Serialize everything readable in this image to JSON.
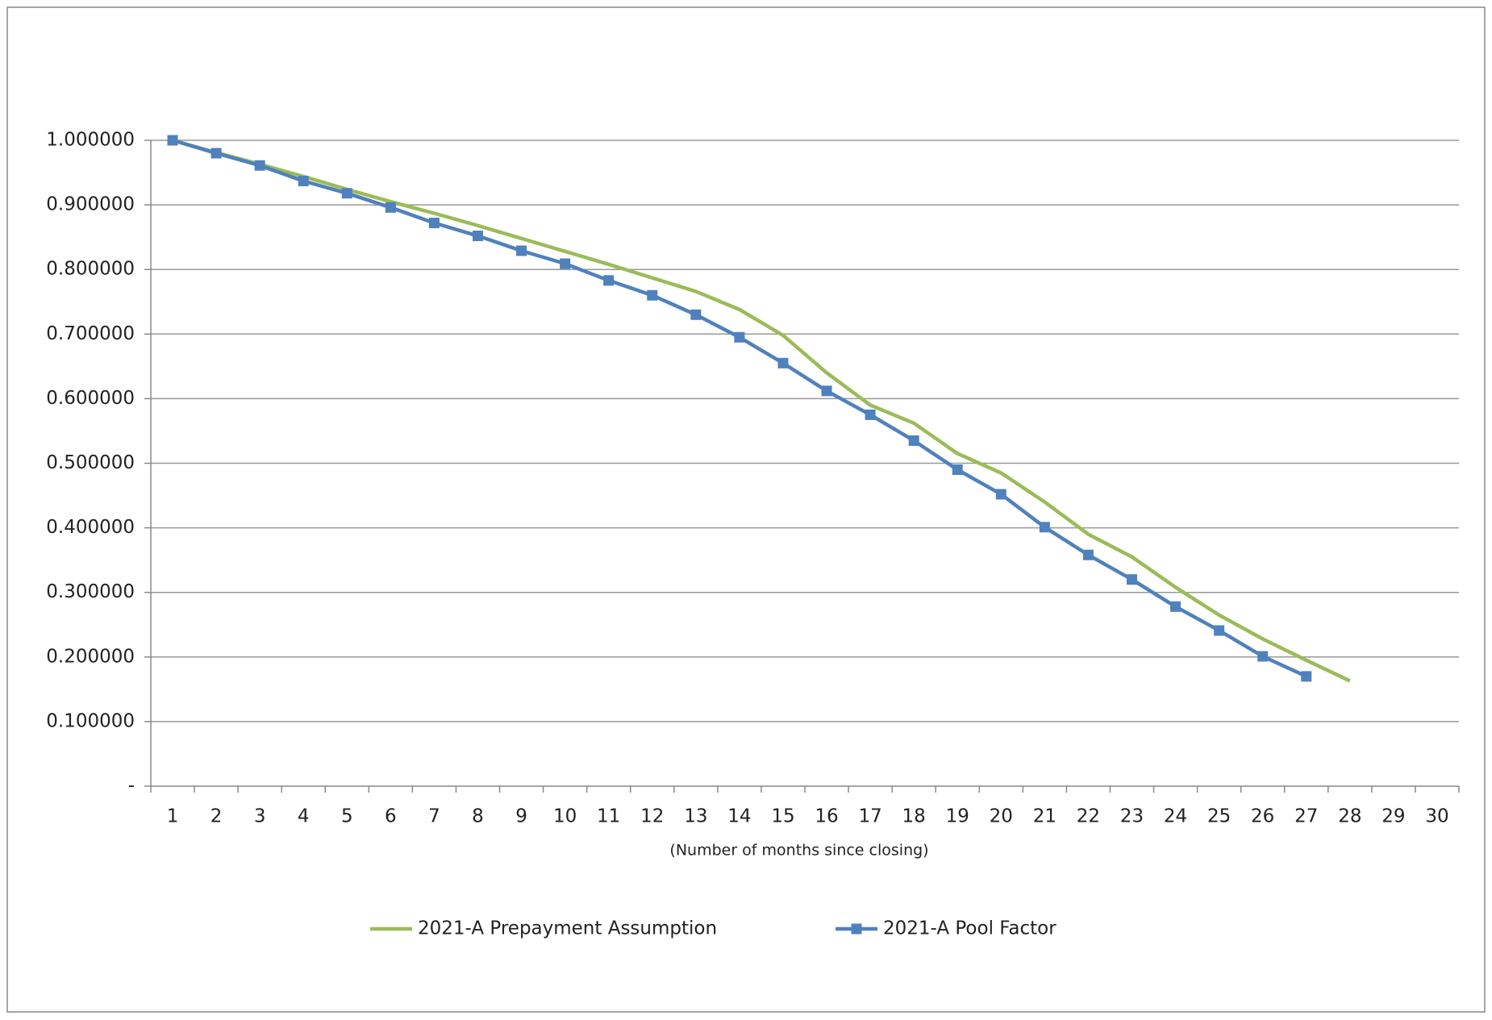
{
  "chart_data": {
    "type": "line",
    "x_label": "(Number of months since closing)",
    "categories": [
      "1",
      "2",
      "3",
      "4",
      "5",
      "6",
      "7",
      "8",
      "9",
      "10",
      "11",
      "12",
      "13",
      "14",
      "15",
      "16",
      "17",
      "18",
      "19",
      "20",
      "21",
      "22",
      "23",
      "24",
      "25",
      "26",
      "27",
      "28",
      "29",
      "30"
    ],
    "series": [
      {
        "name": "2021-A Prepayment Assumption",
        "color": "#9bbb59",
        "marker": "none",
        "values": [
          1.0,
          0.981,
          0.963,
          0.944,
          0.924,
          0.905,
          0.887,
          0.868,
          0.848,
          0.828,
          0.808,
          0.787,
          0.766,
          0.738,
          0.698,
          0.64,
          0.59,
          0.562,
          0.515,
          0.485,
          0.44,
          0.39,
          0.355,
          0.308,
          0.265,
          0.228,
          0.195,
          0.163,
          null,
          null
        ]
      },
      {
        "name": "2021-A Pool Factor",
        "color": "#4f81bd",
        "marker": "square",
        "values": [
          1.0,
          0.98,
          0.961,
          0.937,
          0.918,
          0.896,
          0.872,
          0.852,
          0.829,
          0.809,
          0.783,
          0.76,
          0.73,
          0.695,
          0.655,
          0.612,
          0.575,
          0.535,
          0.49,
          0.452,
          0.401,
          0.358,
          0.32,
          0.278,
          0.241,
          0.201,
          0.17,
          null,
          null,
          null
        ]
      }
    ],
    "ylim": [
      0,
      1
    ],
    "yticks": [
      {
        "value": 0,
        "label": "-"
      },
      {
        "value": 0.1,
        "label": "0.100000"
      },
      {
        "value": 0.2,
        "label": "0.200000"
      },
      {
        "value": 0.3,
        "label": "0.300000"
      },
      {
        "value": 0.4,
        "label": "0.400000"
      },
      {
        "value": 0.5,
        "label": "0.500000"
      },
      {
        "value": 0.6,
        "label": "0.600000"
      },
      {
        "value": 0.7,
        "label": "0.700000"
      },
      {
        "value": 0.8,
        "label": "0.800000"
      },
      {
        "value": 0.9,
        "label": "0.900000"
      },
      {
        "value": 1,
        "label": "1.000000"
      }
    ],
    "grid": true,
    "legend": "bottom"
  }
}
